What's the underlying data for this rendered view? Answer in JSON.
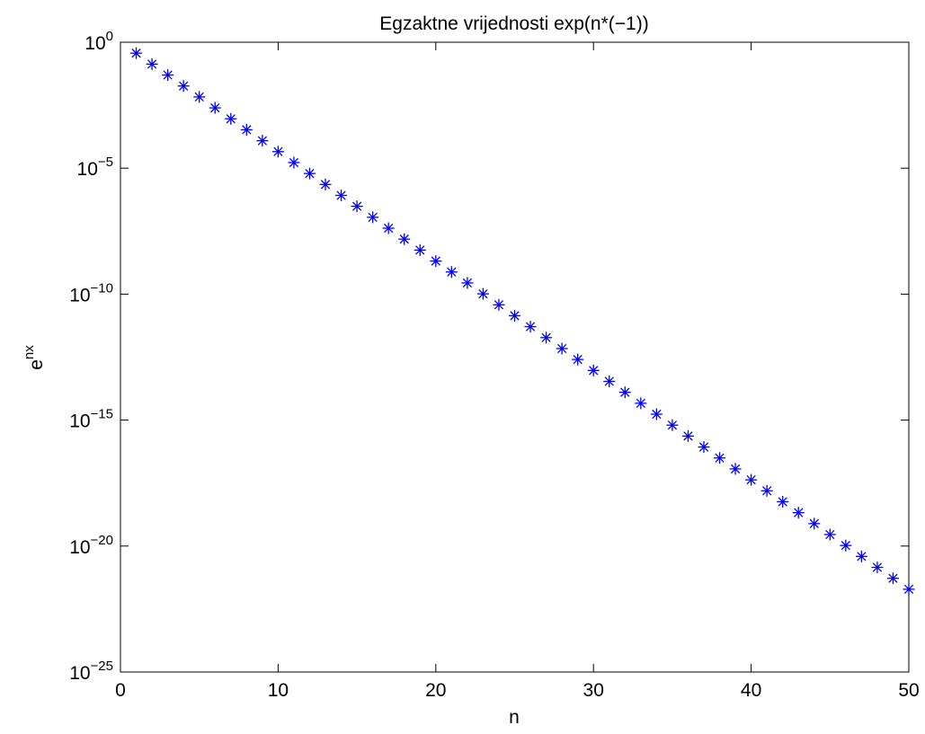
{
  "chart_data": {
    "type": "scatter",
    "title": "Egzaktne vrijednosti exp(n*(−1))",
    "xlabel": "n",
    "ylabel_base": "e",
    "ylabel_sup": "nx",
    "xlim": [
      0,
      50
    ],
    "ylim_exp": [
      -25,
      0
    ],
    "y_scale": "log",
    "grid": false,
    "legend": "none",
    "marker": "asterisk",
    "marker_color": "#0000ff",
    "x_ticks": [
      "0",
      "10",
      "20",
      "30",
      "40",
      "50"
    ],
    "x_tick_values": [
      0,
      10,
      20,
      30,
      40,
      50
    ],
    "y_ticks": [
      {
        "value": 1.0,
        "base": "10",
        "exp": "0"
      },
      {
        "value": 1e-05,
        "base": "10",
        "exp": "−5"
      },
      {
        "value": 1e-10,
        "base": "10",
        "exp": "−10"
      },
      {
        "value": 1e-15,
        "base": "10",
        "exp": "−15"
      },
      {
        "value": 1e-20,
        "base": "10",
        "exp": "−20"
      },
      {
        "value": 1e-25,
        "base": "10",
        "exp": "−25"
      }
    ],
    "x": [
      1,
      2,
      3,
      4,
      5,
      6,
      7,
      8,
      9,
      10,
      11,
      12,
      13,
      14,
      15,
      16,
      17,
      18,
      19,
      20,
      21,
      22,
      23,
      24,
      25,
      26,
      27,
      28,
      29,
      30,
      31,
      32,
      33,
      34,
      35,
      36,
      37,
      38,
      39,
      40,
      41,
      42,
      43,
      44,
      45,
      46,
      47,
      48,
      49,
      50
    ],
    "y": [
      0.3679,
      0.1353,
      0.04979,
      0.01832,
      0.006738,
      0.002479,
      0.0009119,
      0.0003355,
      0.0001234,
      4.54e-05,
      1.67e-05,
      6.144e-06,
      2.26e-06,
      8.315e-07,
      3.059e-07,
      1.125e-07,
      4.14e-08,
      1.523e-08,
      5.603e-09,
      2.061e-09,
      7.583e-10,
      2.789e-10,
      1.026e-10,
      3.775e-11,
      1.389e-11,
      5.109e-12,
      1.88e-12,
      6.914e-13,
      2.544e-13,
      9.358e-14,
      3.442e-14,
      1.266e-14,
      4.659e-15,
      1.714e-15,
      6.305e-16,
      2.32e-16,
      8.533e-17,
      3.139e-17,
      1.155e-17,
      4.248e-18,
      1.563e-18,
      5.75e-19,
      2.115e-19,
      7.781e-20,
      2.863e-20,
      1.053e-20,
      3.874e-21,
      1.425e-21,
      5.243e-22,
      1.929e-22
    ]
  }
}
